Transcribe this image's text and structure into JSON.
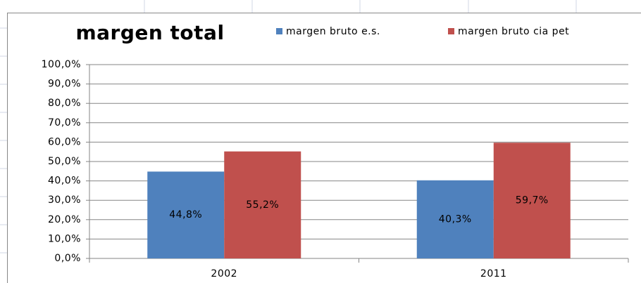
{
  "chart_data": {
    "type": "bar",
    "title": "margen total",
    "categories": [
      "2002",
      "2011"
    ],
    "series": [
      {
        "name": "margen bruto e.s.",
        "color": "#4f81bd",
        "values": [
          44.8,
          40.3
        ],
        "value_labels": [
          "44,8%",
          "40,3%"
        ]
      },
      {
        "name": "margen bruto cia pet",
        "color": "#c0504d",
        "values": [
          55.2,
          59.7
        ],
        "value_labels": [
          "55,2%",
          "59,7%"
        ]
      }
    ],
    "ylim": [
      0,
      100
    ],
    "yticks": [
      {
        "value": 0,
        "label": "0,0%"
      },
      {
        "value": 10,
        "label": "10,0%"
      },
      {
        "value": 20,
        "label": "20,0%"
      },
      {
        "value": 30,
        "label": "30,0%"
      },
      {
        "value": 40,
        "label": "40,0%"
      },
      {
        "value": 50,
        "label": "50,0%"
      },
      {
        "value": 60,
        "label": "60,0%"
      },
      {
        "value": 70,
        "label": "70,0%"
      },
      {
        "value": 80,
        "label": "80,0%"
      },
      {
        "value": 90,
        "label": "90,0%"
      },
      {
        "value": 100,
        "label": "100,0%"
      }
    ],
    "grid": true,
    "legend": "top"
  }
}
